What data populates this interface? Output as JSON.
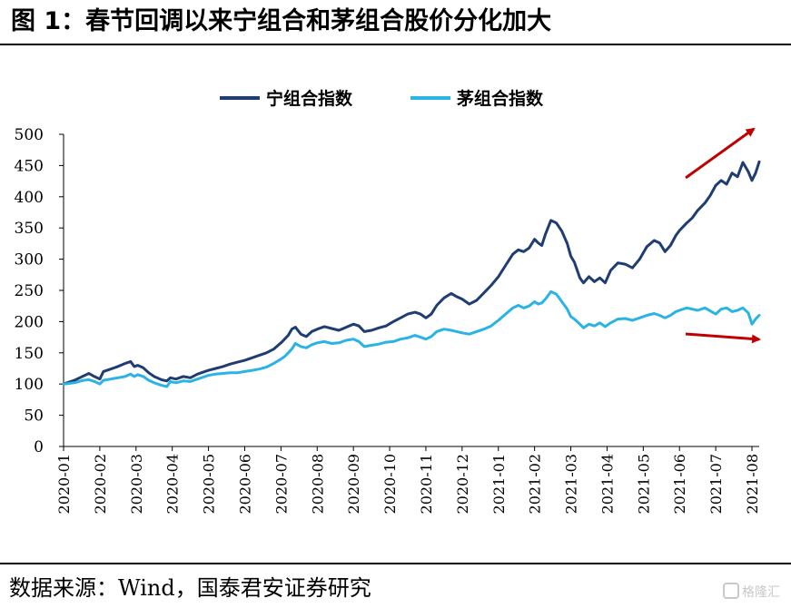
{
  "title": "图 1：春节回调以来宁组合和茅组合股价分化加大",
  "source": "数据来源：Wind，国泰君安证券研究",
  "watermark": "格隆汇",
  "colors": {
    "ning": "#1f3d73",
    "mao": "#2bb3e6",
    "arrow": "#c00000"
  },
  "chart_data": {
    "type": "line",
    "title": "",
    "xlabel": "",
    "ylabel": "",
    "ylim": [
      0,
      500
    ],
    "yticks": [
      0,
      50,
      100,
      150,
      200,
      250,
      300,
      350,
      400,
      450,
      500
    ],
    "xlim": [
      0,
      19.2
    ],
    "xticks": [
      {
        "x": 0,
        "label": "2020-01"
      },
      {
        "x": 1,
        "label": "2020-02"
      },
      {
        "x": 2,
        "label": "2020-03"
      },
      {
        "x": 3,
        "label": "2020-04"
      },
      {
        "x": 4,
        "label": "2020-05"
      },
      {
        "x": 5,
        "label": "2020-06"
      },
      {
        "x": 6,
        "label": "2020-07"
      },
      {
        "x": 7,
        "label": "2020-08"
      },
      {
        "x": 8,
        "label": "2020-09"
      },
      {
        "x": 9,
        "label": "2020-10"
      },
      {
        "x": 10,
        "label": "2020-11"
      },
      {
        "x": 11,
        "label": "2020-12"
      },
      {
        "x": 12,
        "label": "2021-01"
      },
      {
        "x": 13,
        "label": "2021-02"
      },
      {
        "x": 14,
        "label": "2021-03"
      },
      {
        "x": 15,
        "label": "2021-04"
      },
      {
        "x": 16,
        "label": "2021-05"
      },
      {
        "x": 17,
        "label": "2021-06"
      },
      {
        "x": 18,
        "label": "2021-07"
      },
      {
        "x": 19,
        "label": "2021-08"
      }
    ],
    "legend": "top-center",
    "grid": false,
    "series": [
      {
        "name": "宁组合指数",
        "color": "#1f3d73",
        "points": [
          [
            0,
            100
          ],
          [
            0.3,
            106
          ],
          [
            0.55,
            113
          ],
          [
            0.7,
            117
          ],
          [
            0.85,
            112
          ],
          [
            1,
            108
          ],
          [
            1.1,
            120
          ],
          [
            1.3,
            124
          ],
          [
            1.5,
            128
          ],
          [
            1.7,
            133
          ],
          [
            1.85,
            136
          ],
          [
            1.95,
            128
          ],
          [
            2.05,
            130
          ],
          [
            2.2,
            126
          ],
          [
            2.35,
            118
          ],
          [
            2.5,
            112
          ],
          [
            2.7,
            107
          ],
          [
            2.85,
            105
          ],
          [
            2.95,
            110
          ],
          [
            3.1,
            108
          ],
          [
            3.3,
            112
          ],
          [
            3.5,
            110
          ],
          [
            3.7,
            116
          ],
          [
            3.9,
            120
          ],
          [
            4.0,
            122
          ],
          [
            4.2,
            125
          ],
          [
            4.4,
            128
          ],
          [
            4.6,
            132
          ],
          [
            4.8,
            135
          ],
          [
            5.0,
            138
          ],
          [
            5.2,
            142
          ],
          [
            5.4,
            146
          ],
          [
            5.6,
            150
          ],
          [
            5.8,
            156
          ],
          [
            6.0,
            166
          ],
          [
            6.1,
            172
          ],
          [
            6.2,
            178
          ],
          [
            6.3,
            188
          ],
          [
            6.4,
            191
          ],
          [
            6.55,
            180
          ],
          [
            6.7,
            176
          ],
          [
            6.85,
            184
          ],
          [
            7.0,
            188
          ],
          [
            7.2,
            192
          ],
          [
            7.4,
            189
          ],
          [
            7.6,
            186
          ],
          [
            7.8,
            191
          ],
          [
            8.0,
            196
          ],
          [
            8.15,
            193
          ],
          [
            8.3,
            184
          ],
          [
            8.5,
            186
          ],
          [
            8.7,
            190
          ],
          [
            8.9,
            193
          ],
          [
            9.1,
            200
          ],
          [
            9.3,
            206
          ],
          [
            9.5,
            212
          ],
          [
            9.7,
            215
          ],
          [
            9.85,
            212
          ],
          [
            10.0,
            206
          ],
          [
            10.15,
            212
          ],
          [
            10.3,
            226
          ],
          [
            10.5,
            238
          ],
          [
            10.7,
            245
          ],
          [
            10.85,
            240
          ],
          [
            11.0,
            236
          ],
          [
            11.2,
            228
          ],
          [
            11.4,
            234
          ],
          [
            11.6,
            246
          ],
          [
            11.8,
            258
          ],
          [
            12.0,
            272
          ],
          [
            12.2,
            290
          ],
          [
            12.4,
            308
          ],
          [
            12.55,
            315
          ],
          [
            12.7,
            312
          ],
          [
            12.85,
            318
          ],
          [
            13.0,
            332
          ],
          [
            13.1,
            326
          ],
          [
            13.2,
            322
          ],
          [
            13.3,
            340
          ],
          [
            13.45,
            362
          ],
          [
            13.6,
            358
          ],
          [
            13.75,
            345
          ],
          [
            13.9,
            325
          ],
          [
            14.0,
            305
          ],
          [
            14.1,
            295
          ],
          [
            14.25,
            270
          ],
          [
            14.35,
            262
          ],
          [
            14.5,
            272
          ],
          [
            14.65,
            264
          ],
          [
            14.8,
            270
          ],
          [
            14.95,
            262
          ],
          [
            15.1,
            282
          ],
          [
            15.3,
            294
          ],
          [
            15.5,
            292
          ],
          [
            15.7,
            286
          ],
          [
            15.9,
            300
          ],
          [
            16.1,
            320
          ],
          [
            16.3,
            330
          ],
          [
            16.45,
            326
          ],
          [
            16.6,
            312
          ],
          [
            16.75,
            322
          ],
          [
            16.9,
            338
          ],
          [
            17.0,
            346
          ],
          [
            17.2,
            358
          ],
          [
            17.35,
            366
          ],
          [
            17.5,
            378
          ],
          [
            17.7,
            390
          ],
          [
            17.85,
            402
          ],
          [
            18.0,
            418
          ],
          [
            18.15,
            426
          ],
          [
            18.3,
            420
          ],
          [
            18.45,
            438
          ],
          [
            18.6,
            432
          ],
          [
            18.75,
            455
          ],
          [
            18.9,
            440
          ],
          [
            19.0,
            426
          ],
          [
            19.1,
            438
          ],
          [
            19.2,
            456
          ]
        ]
      },
      {
        "name": "茅组合指数",
        "color": "#2bb3e6",
        "points": [
          [
            0,
            100
          ],
          [
            0.3,
            102
          ],
          [
            0.55,
            106
          ],
          [
            0.7,
            107
          ],
          [
            0.85,
            104
          ],
          [
            1,
            100
          ],
          [
            1.1,
            106
          ],
          [
            1.3,
            108
          ],
          [
            1.5,
            110
          ],
          [
            1.7,
            112
          ],
          [
            1.85,
            116
          ],
          [
            1.95,
            112
          ],
          [
            2.05,
            115
          ],
          [
            2.2,
            112
          ],
          [
            2.35,
            106
          ],
          [
            2.5,
            102
          ],
          [
            2.7,
            98
          ],
          [
            2.85,
            96
          ],
          [
            2.95,
            104
          ],
          [
            3.1,
            102
          ],
          [
            3.3,
            105
          ],
          [
            3.5,
            104
          ],
          [
            3.7,
            108
          ],
          [
            3.9,
            112
          ],
          [
            4.0,
            114
          ],
          [
            4.2,
            116
          ],
          [
            4.4,
            117
          ],
          [
            4.6,
            118
          ],
          [
            4.8,
            118
          ],
          [
            5.0,
            120
          ],
          [
            5.2,
            122
          ],
          [
            5.4,
            124
          ],
          [
            5.6,
            127
          ],
          [
            5.8,
            133
          ],
          [
            6.0,
            140
          ],
          [
            6.1,
            144
          ],
          [
            6.2,
            150
          ],
          [
            6.3,
            156
          ],
          [
            6.4,
            165
          ],
          [
            6.55,
            160
          ],
          [
            6.7,
            158
          ],
          [
            6.85,
            163
          ],
          [
            7.0,
            166
          ],
          [
            7.2,
            168
          ],
          [
            7.4,
            165
          ],
          [
            7.6,
            166
          ],
          [
            7.8,
            170
          ],
          [
            8.0,
            172
          ],
          [
            8.15,
            168
          ],
          [
            8.3,
            160
          ],
          [
            8.5,
            162
          ],
          [
            8.7,
            164
          ],
          [
            8.9,
            167
          ],
          [
            9.1,
            168
          ],
          [
            9.3,
            172
          ],
          [
            9.5,
            174
          ],
          [
            9.7,
            178
          ],
          [
            9.85,
            175
          ],
          [
            10.0,
            172
          ],
          [
            10.15,
            176
          ],
          [
            10.3,
            184
          ],
          [
            10.5,
            188
          ],
          [
            10.7,
            186
          ],
          [
            10.85,
            184
          ],
          [
            11.0,
            182
          ],
          [
            11.2,
            180
          ],
          [
            11.4,
            184
          ],
          [
            11.6,
            188
          ],
          [
            11.8,
            193
          ],
          [
            12.0,
            202
          ],
          [
            12.2,
            212
          ],
          [
            12.4,
            222
          ],
          [
            12.55,
            226
          ],
          [
            12.7,
            222
          ],
          [
            12.85,
            225
          ],
          [
            13.0,
            232
          ],
          [
            13.1,
            228
          ],
          [
            13.2,
            230
          ],
          [
            13.3,
            236
          ],
          [
            13.45,
            248
          ],
          [
            13.6,
            244
          ],
          [
            13.75,
            232
          ],
          [
            13.9,
            220
          ],
          [
            14.0,
            208
          ],
          [
            14.1,
            204
          ],
          [
            14.25,
            196
          ],
          [
            14.35,
            190
          ],
          [
            14.5,
            196
          ],
          [
            14.65,
            193
          ],
          [
            14.8,
            198
          ],
          [
            14.95,
            192
          ],
          [
            15.1,
            198
          ],
          [
            15.3,
            204
          ],
          [
            15.5,
            205
          ],
          [
            15.7,
            202
          ],
          [
            15.9,
            206
          ],
          [
            16.1,
            210
          ],
          [
            16.3,
            213
          ],
          [
            16.45,
            210
          ],
          [
            16.6,
            206
          ],
          [
            16.75,
            210
          ],
          [
            16.9,
            216
          ],
          [
            17.0,
            218
          ],
          [
            17.2,
            222
          ],
          [
            17.35,
            220
          ],
          [
            17.5,
            218
          ],
          [
            17.7,
            222
          ],
          [
            17.85,
            217
          ],
          [
            18.0,
            212
          ],
          [
            18.15,
            220
          ],
          [
            18.3,
            222
          ],
          [
            18.45,
            216
          ],
          [
            18.6,
            218
          ],
          [
            18.75,
            222
          ],
          [
            18.9,
            214
          ],
          [
            19.0,
            196
          ],
          [
            19.1,
            204
          ],
          [
            19.2,
            210
          ]
        ]
      }
    ]
  }
}
